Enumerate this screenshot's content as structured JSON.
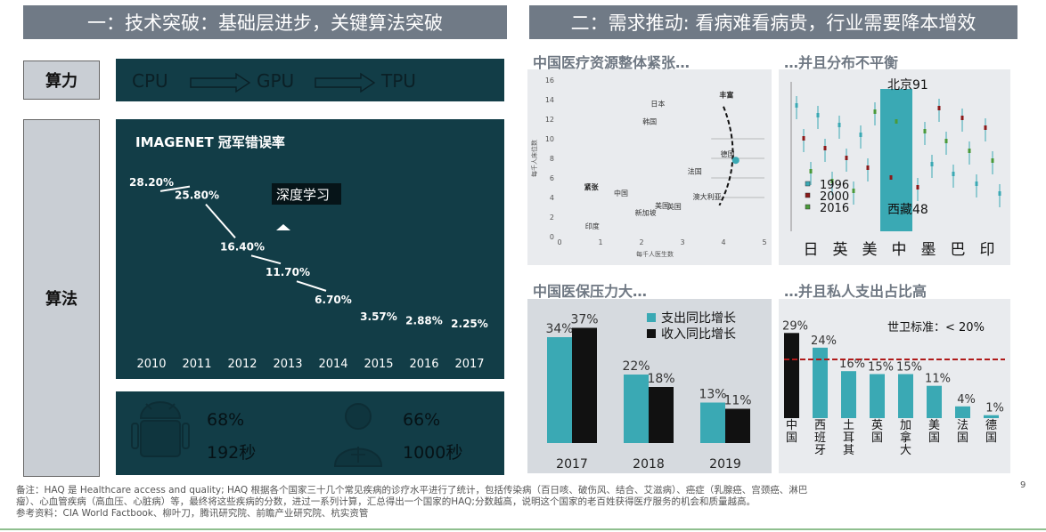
{
  "left_header": "一：技术突破：基础层进步，关键算法突破",
  "right_header": "二：需求推动: 看病难看病贵，行业需要降本增效",
  "suanli": {
    "label": "算力",
    "chips": [
      "CPU",
      "GPU",
      "TPU"
    ]
  },
  "suanfa": {
    "label": "算法"
  },
  "imagenet": {
    "title": "IMAGENET 冠军错误率",
    "annotation": "深度学习",
    "chart_data": {
      "type": "line",
      "title": "IMAGENET 冠军错误率",
      "categories": [
        "2010",
        "2011",
        "2012",
        "2013",
        "2014",
        "2015",
        "2016",
        "2017"
      ],
      "values": [
        28.2,
        25.8,
        16.4,
        11.7,
        6.7,
        3.57,
        2.88,
        2.25
      ],
      "value_labels": [
        "28.20%",
        "25.80%",
        "16.40%",
        "11.70%",
        "6.70%",
        "3.57%",
        "2.88%",
        "2.25%"
      ]
    }
  },
  "stats": {
    "a_pct": "68%",
    "a_time": "192秒",
    "b_pct": "66%",
    "b_time": "1000秒"
  },
  "scatter": {
    "title": "中国医疗资源整体紧张…",
    "chart_data": {
      "type": "scatter",
      "xlabel": "每千人医生数",
      "ylabel": "每千人床位数",
      "xlim": [
        0,
        5
      ],
      "ylim": [
        0,
        16
      ],
      "xticks": [
        "0",
        "1",
        "2",
        "3",
        "4",
        "5"
      ],
      "yticks": [
        "0",
        "2",
        "4",
        "6",
        "8",
        "10",
        "12",
        "14",
        "16"
      ],
      "annotations": [
        "丰富",
        "紧张"
      ],
      "points": [
        {
          "label": "日本",
          "x": 2.4,
          "y": 13.3
        },
        {
          "label": "韩国",
          "x": 2.2,
          "y": 11.5
        },
        {
          "label": "德国",
          "x": 4.1,
          "y": 8.2
        },
        {
          "label": "法国",
          "x": 3.3,
          "y": 6.4
        },
        {
          "label": "美国",
          "x": 2.5,
          "y": 2.9
        },
        {
          "label": "澳大利亚",
          "x": 3.6,
          "y": 3.8
        },
        {
          "label": "中国",
          "x": 1.5,
          "y": 4.2
        },
        {
          "label": "新加坡",
          "x": 2.1,
          "y": 2.2
        },
        {
          "label": "英国",
          "x": 2.8,
          "y": 2.8
        },
        {
          "label": "印度",
          "x": 0.8,
          "y": 0.8
        }
      ]
    }
  },
  "haq": {
    "title": "…并且分布不平衡",
    "chart_data": {
      "type": "scatter",
      "categories": [
        "日",
        "英",
        "美",
        "中",
        "墨",
        "巴",
        "印"
      ],
      "legend": [
        "1996",
        "2000",
        "2016"
      ],
      "annotations": [
        "北京91",
        "西藏48"
      ]
    }
  },
  "insurance": {
    "title": "中国医保压力大…",
    "chart_data": {
      "type": "bar",
      "categories": [
        "2017",
        "2018",
        "2019"
      ],
      "series": [
        {
          "name": "支出同比增长",
          "values": [
            34,
            22,
            13
          ],
          "labels": [
            "34%",
            "22%",
            "13%"
          ],
          "color": "#3aa9b4"
        },
        {
          "name": "收入同比增长",
          "values": [
            37,
            18,
            11
          ],
          "labels": [
            "37%",
            "18%",
            "11%"
          ],
          "color": "#111111"
        }
      ]
    }
  },
  "private": {
    "title": "…并且私人支出占比高",
    "chart_data": {
      "type": "bar",
      "categories": [
        "中国",
        "西班牙",
        "土耳其",
        "英国",
        "加拿大",
        "美国",
        "法国",
        "德国"
      ],
      "values": [
        29,
        24,
        16,
        15,
        15,
        11,
        4,
        1
      ],
      "value_labels": [
        "29%",
        "24%",
        "16%",
        "15%",
        "15%",
        "11%",
        "4%",
        "1%"
      ],
      "reference_line": "世卫标准：< 20%"
    }
  },
  "page_number": "9",
  "notes": [
    "备注：HAQ 是 Healthcare access and quality; HAQ 根据各个国家三十几个常见疾病的诊疗水平进行了统计，包括传染病（百日咳、破伤风、结合、艾滋病）、癌症（乳腺癌、宫颈癌、淋巴",
    "瘤）、心血管疾病（高血压、心脏病）等，最终将这些疾病的分数，进过一系列计算，汇总得出一个国家的HAQ;分数越高，说明这个国家的老百姓获得医疗服务的机会和质量越高。",
    "参考资料：CIA World Factbook、柳叶刀，腾讯研究院、前瞻产业研究院、杭实资管"
  ]
}
